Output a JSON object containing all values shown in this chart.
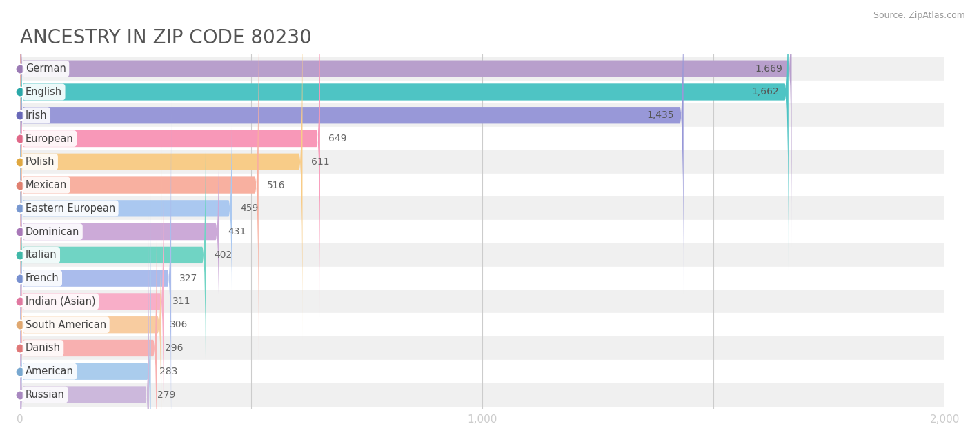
{
  "title": "ANCESTRY IN ZIP CODE 80230",
  "source": "Source: ZipAtlas.com",
  "categories": [
    "German",
    "English",
    "Irish",
    "European",
    "Polish",
    "Mexican",
    "Eastern European",
    "Dominican",
    "Italian",
    "French",
    "Indian (Asian)",
    "South American",
    "Danish",
    "American",
    "Russian"
  ],
  "values": [
    1669,
    1662,
    1435,
    649,
    611,
    516,
    459,
    431,
    402,
    327,
    311,
    306,
    296,
    283,
    279
  ],
  "bar_colors": [
    "#b89fcc",
    "#4ec4c4",
    "#9898d8",
    "#f898b8",
    "#f8cc88",
    "#f8b0a0",
    "#aac8f0",
    "#ccaad8",
    "#70d4c4",
    "#aabcec",
    "#f8aec8",
    "#f8cca0",
    "#f8b0b0",
    "#aacced",
    "#ccb8dc"
  ],
  "dot_colors": [
    "#9b7bb5",
    "#2aa8a8",
    "#6868b8",
    "#e06888",
    "#e0a840",
    "#e08070",
    "#7898d0",
    "#a878b8",
    "#40b8a8",
    "#7890d0",
    "#e078a0",
    "#e0a870",
    "#e07878",
    "#78a8d0",
    "#a888c0"
  ],
  "xlim": [
    0,
    2000
  ],
  "xticks": [
    0,
    1000,
    2000
  ],
  "xtick_labels": [
    "0",
    "1,000",
    "2,000"
  ],
  "background_color": "#ffffff",
  "bar_height": 0.72,
  "title_fontsize": 20,
  "label_fontsize": 10.5,
  "value_fontsize": 10,
  "tick_fontsize": 11,
  "row_colors": [
    "#f0f0f0",
    "#ffffff"
  ]
}
